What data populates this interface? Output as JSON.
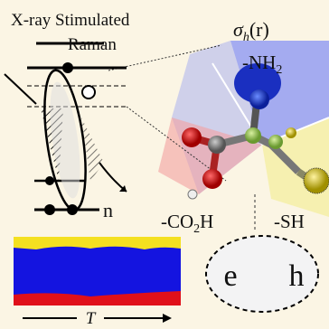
{
  "header": {
    "line1": "X-ray Stimulated",
    "line2": "Raman"
  },
  "sigma": {
    "base": "σ",
    "sub": "h",
    "rest": "(r)"
  },
  "groups": {
    "nh2": {
      "base": "-NH",
      "sub": "2"
    },
    "co2h": {
      "base": "-CO",
      "sub": "2",
      "rest": "H"
    },
    "sh": "-SH"
  },
  "levels": {
    "n": "n"
  },
  "carriers": {
    "electron": "e",
    "hole": "h"
  },
  "time_axis": "T"
}
